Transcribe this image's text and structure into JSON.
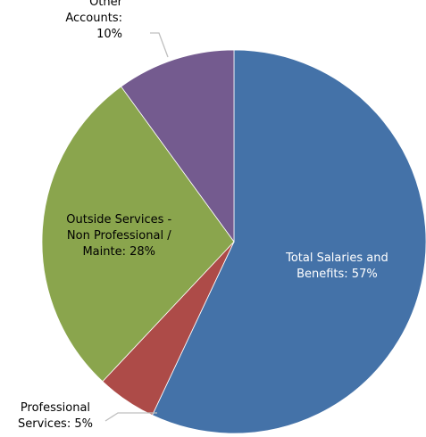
{
  "chart_data": {
    "type": "pie",
    "title": "",
    "start_angle_deg": 0,
    "direction": "clockwise",
    "series": [
      {
        "values": [
          57,
          5,
          28,
          10
        ],
        "labels": [
          "Total Salaries and Benefits: 57%",
          "Professional Services: 5%",
          "Outside Services - Non Professional / Mainte: 28%",
          "Other Accounts: 10%"
        ]
      }
    ],
    "slices": [
      {
        "name": "Total Salaries and Benefits",
        "value": 57,
        "color": "#4472a8",
        "label_lines": [
          "Total Salaries and",
          "Benefits: 57%"
        ],
        "label_color": "#ffffff",
        "label_position": "inside"
      },
      {
        "name": "Professional Services",
        "value": 5,
        "color": "#ad4b48",
        "label_lines": [
          "Professional",
          "Services: 5%"
        ],
        "label_color": "#000000",
        "label_position": "outside-bottom-left"
      },
      {
        "name": "Outside Services - Non Professional / Mainte",
        "value": 28,
        "color": "#8aa54d",
        "label_lines": [
          "Outside Services -",
          "Non Professional /",
          "Mainte: 28%"
        ],
        "label_color": "#000000",
        "label_position": "inside"
      },
      {
        "name": "Other Accounts",
        "value": 10,
        "color": "#745b8f",
        "label_lines": [
          "Other",
          "Accounts:",
          "10%"
        ],
        "label_color": "#000000",
        "label_position": "outside-top-left"
      }
    ],
    "leader_line_color": "#bfbfbf",
    "legend": "none"
  }
}
